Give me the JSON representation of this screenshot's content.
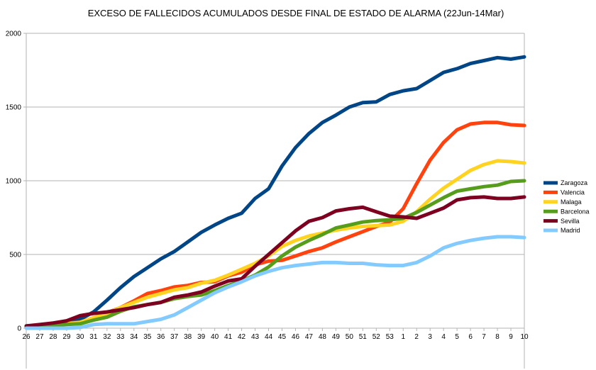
{
  "chart_data": {
    "type": "line",
    "title": "EXCESO DE FALLECIDOS ACUMULADOS DESDE FINAL DE ESTADO DE ALARMA (22Jun-14Mar)",
    "xlabel": "",
    "ylabel": "",
    "ylim": [
      0,
      2000
    ],
    "yticks": [
      "0",
      "500",
      "1000",
      "1500",
      "2000"
    ],
    "grid": true,
    "legend_position": "right",
    "x": [
      "26",
      "27",
      "28",
      "29",
      "30",
      "31",
      "32",
      "33",
      "34",
      "35",
      "36",
      "37",
      "38",
      "39",
      "40",
      "41",
      "42",
      "43",
      "44",
      "45",
      "46",
      "47",
      "48",
      "49",
      "50",
      "51",
      "52",
      "53",
      "1",
      "2",
      "3",
      "4",
      "5",
      "6",
      "7",
      "8",
      "9",
      "10"
    ],
    "series": [
      {
        "name": "Zaragoza",
        "color": "#004586",
        "values": [
          10,
          15,
          15,
          30,
          60,
          110,
          190,
          275,
          350,
          410,
          470,
          520,
          585,
          650,
          700,
          745,
          780,
          880,
          945,
          1100,
          1225,
          1320,
          1395,
          1445,
          1500,
          1530,
          1535,
          1585,
          1610,
          1625,
          1680,
          1735,
          1760,
          1795,
          1815,
          1835,
          1825,
          1840
        ]
      },
      {
        "name": "Valencia",
        "color": "#ff420e",
        "values": [
          15,
          20,
          25,
          35,
          40,
          70,
          105,
          140,
          185,
          235,
          255,
          280,
          290,
          310,
          315,
          355,
          380,
          430,
          455,
          460,
          490,
          520,
          545,
          585,
          620,
          655,
          690,
          720,
          810,
          980,
          1140,
          1260,
          1345,
          1385,
          1395,
          1395,
          1380,
          1375
        ]
      },
      {
        "name": "Malaga",
        "color": "#ffd320",
        "values": [
          15,
          20,
          25,
          30,
          40,
          70,
          100,
          140,
          175,
          210,
          235,
          260,
          275,
          305,
          325,
          360,
          400,
          440,
          490,
          555,
          595,
          625,
          645,
          665,
          680,
          690,
          695,
          700,
          725,
          790,
          875,
          950,
          1010,
          1070,
          1110,
          1135,
          1130,
          1120
        ]
      },
      {
        "name": "Barcelona",
        "color": "#579d1c",
        "values": [
          15,
          15,
          20,
          25,
          30,
          55,
          75,
          115,
          145,
          160,
          175,
          200,
          215,
          225,
          255,
          290,
          320,
          360,
          415,
          490,
          550,
          595,
          635,
          680,
          700,
          720,
          730,
          735,
          745,
          785,
          835,
          885,
          930,
          945,
          960,
          970,
          995,
          1000
        ]
      },
      {
        "name": "Sevilla",
        "color": "#7e0021",
        "values": [
          15,
          25,
          35,
          50,
          85,
          100,
          110,
          125,
          140,
          160,
          175,
          210,
          225,
          245,
          285,
          320,
          335,
          420,
          500,
          580,
          660,
          725,
          750,
          795,
          810,
          820,
          790,
          760,
          755,
          745,
          780,
          815,
          870,
          885,
          890,
          880,
          880,
          890
        ]
      },
      {
        "name": "Madrid",
        "color": "#83caff",
        "values": [
          0,
          0,
          0,
          0,
          5,
          25,
          30,
          30,
          30,
          45,
          60,
          90,
          140,
          190,
          240,
          280,
          315,
          355,
          385,
          410,
          425,
          435,
          445,
          445,
          440,
          440,
          430,
          425,
          425,
          445,
          490,
          545,
          575,
          595,
          610,
          620,
          620,
          615
        ]
      }
    ]
  }
}
